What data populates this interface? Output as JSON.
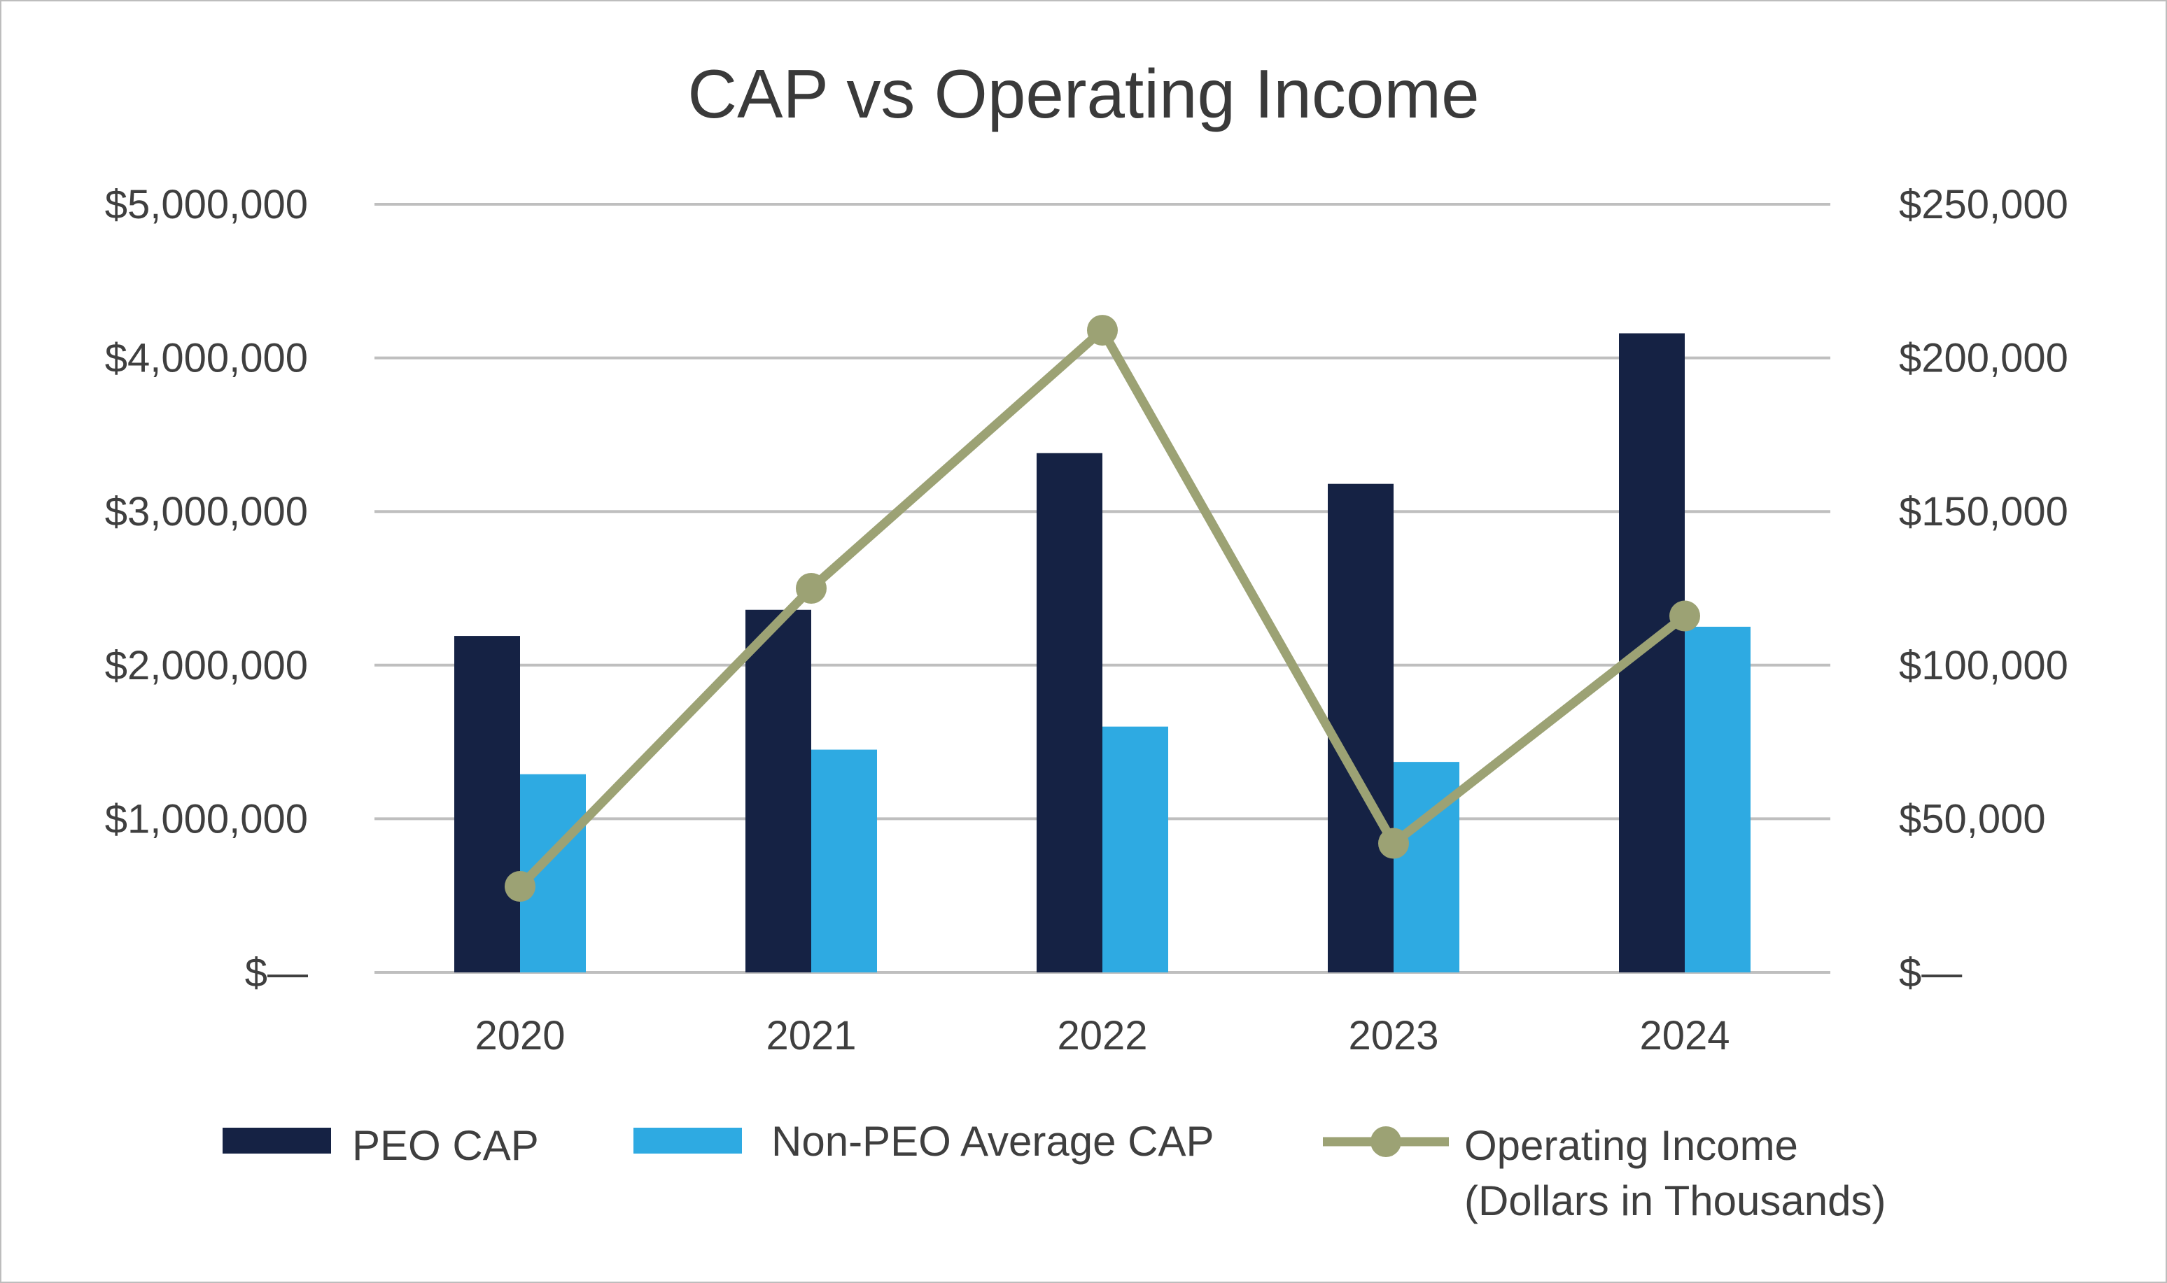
{
  "chart_data": {
    "type": "bar+line",
    "title": "CAP vs Operating Income",
    "categories": [
      "2020",
      "2021",
      "2022",
      "2023",
      "2024"
    ],
    "series": [
      {
        "name": "PEO CAP",
        "type": "bar",
        "axis": "left",
        "color": "#152244",
        "values": [
          2190000,
          2360000,
          3380000,
          3180000,
          4160000
        ]
      },
      {
        "name": "Non-PEO Average CAP",
        "type": "bar",
        "axis": "left",
        "color": "#2eaae2",
        "values": [
          1290000,
          1450000,
          1600000,
          1370000,
          2250000
        ]
      },
      {
        "name": "Operating Income",
        "name_line2": "(Dollars in Thousands)",
        "type": "line",
        "axis": "right",
        "color": "#9ca274",
        "values": [
          28000,
          125000,
          209000,
          42000,
          116000
        ]
      }
    ],
    "left_axis": {
      "ylim": [
        0,
        5000000
      ],
      "ticks": [
        0,
        1000000,
        2000000,
        3000000,
        4000000,
        5000000
      ],
      "tick_labels": [
        "$—",
        "$1,000,000",
        "$2,000,000",
        "$3,000,000",
        "$4,000,000",
        "$5,000,000"
      ]
    },
    "right_axis": {
      "ylim": [
        0,
        250000
      ],
      "ticks": [
        0,
        50000,
        100000,
        150000,
        200000,
        250000
      ],
      "tick_labels": [
        "$—",
        "$50,000",
        "$100,000",
        "$150,000",
        "$200,000",
        "$250,000"
      ]
    },
    "grid": true,
    "gridline_color": "#bfbfbf",
    "legend_position": "bottom"
  }
}
